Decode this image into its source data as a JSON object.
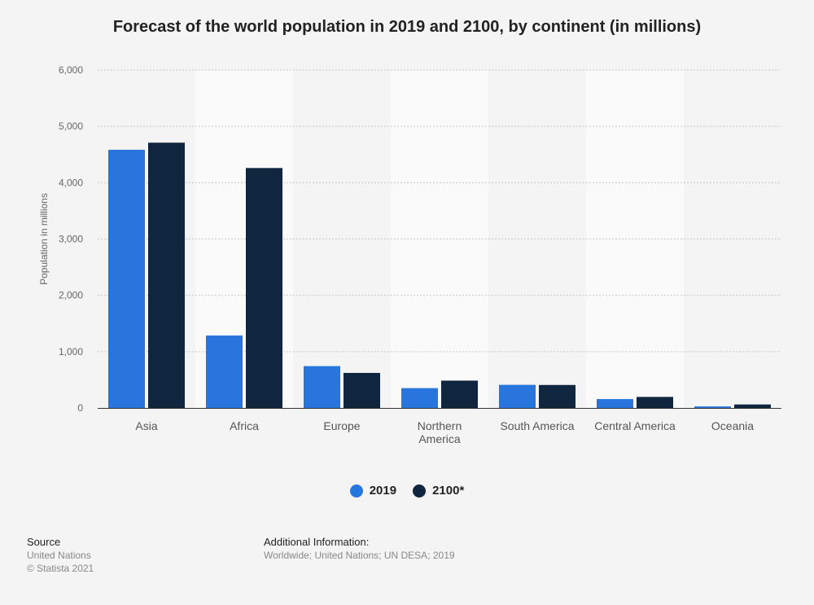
{
  "chart_data": {
    "type": "bar",
    "title": "Forecast of the world population in 2019 and 2100, by continent (in millions)",
    "xlabel": "",
    "ylabel": "Population in millions",
    "ylim": [
      0,
      6000
    ],
    "yticks": [
      0,
      1000,
      2000,
      3000,
      4000,
      5000,
      6000
    ],
    "ytick_labels": [
      "0",
      "1,000",
      "2,000",
      "3,000",
      "4,000",
      "5,000",
      "6,000"
    ],
    "categories": [
      "Asia",
      "Africa",
      "Europe",
      "Northern America",
      "South America",
      "Central America",
      "Oceania"
    ],
    "category_display": [
      [
        "Asia"
      ],
      [
        "Africa"
      ],
      [
        "Europe"
      ],
      [
        "Northern",
        "America"
      ],
      [
        "South America"
      ],
      [
        "Central America"
      ],
      [
        "Oceania"
      ]
    ],
    "series": [
      {
        "name": "2019",
        "color": "#2876dd",
        "values": [
          4584,
          1286,
          743,
          352,
          410,
          158,
          27
        ]
      },
      {
        "name": "2100*",
        "color": "#10263e",
        "values": [
          4710,
          4260,
          622,
          485,
          408,
          196,
          62
        ]
      }
    ],
    "grid": true,
    "legend": "bottom-center"
  },
  "footer": {
    "source_label": "Source",
    "source_lines": [
      "United Nations",
      "© Statista 2021"
    ],
    "info_label": "Additional Information:",
    "info_text": "Worldwide; United Nations; UN DESA; 2019"
  }
}
